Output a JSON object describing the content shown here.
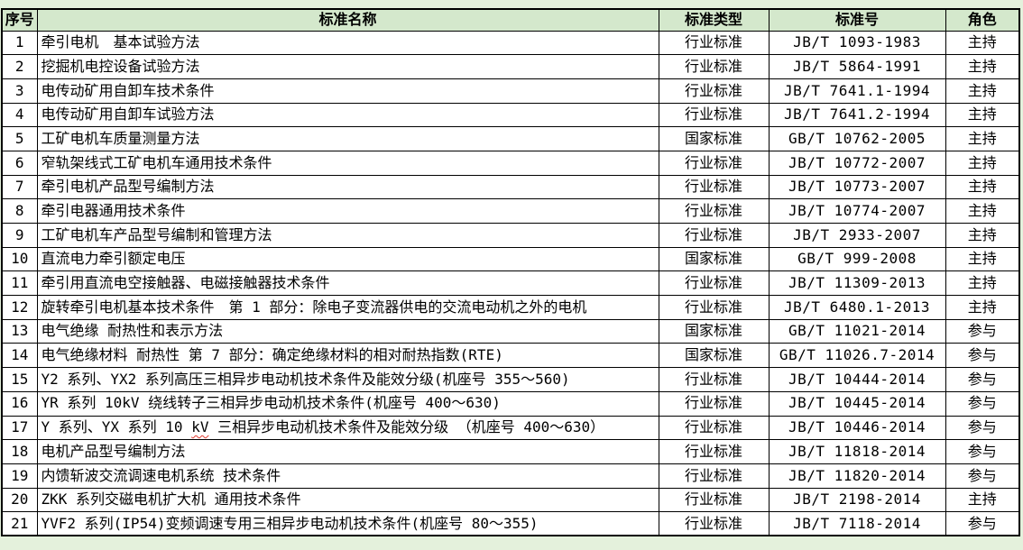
{
  "colors": {
    "page_bg": "#e4f1dc",
    "header_bg": "#d4e8cc",
    "grid_border": "#000000",
    "cell_bg": "#ffffff",
    "spellcheck_color": "#e03c31"
  },
  "table": {
    "columns": [
      {
        "key": "seq",
        "label": "序号"
      },
      {
        "key": "name",
        "label": "标准名称"
      },
      {
        "key": "type",
        "label": "标准类型"
      },
      {
        "key": "number",
        "label": "标准号"
      },
      {
        "key": "role",
        "label": "角色"
      }
    ],
    "rows": [
      {
        "seq": "1",
        "name": "牵引电机　基本试验方法",
        "type": "行业标准",
        "number": "JB/T 1093-1983",
        "role": "主持"
      },
      {
        "seq": "2",
        "name": "挖掘机电控设备试验方法",
        "type": "行业标准",
        "number": "JB/T 5864-1991",
        "role": "主持"
      },
      {
        "seq": "3",
        "name": "电传动矿用自卸车技术条件",
        "type": "行业标准",
        "number": "JB/T 7641.1-1994",
        "role": "主持"
      },
      {
        "seq": "4",
        "name": "电传动矿用自卸车试验方法",
        "type": "行业标准",
        "number": "JB/T 7641.2-1994",
        "role": "主持"
      },
      {
        "seq": "5",
        "name": "工矿电机车质量测量方法",
        "type": "国家标准",
        "number": "GB/T 10762-2005",
        "role": "主持"
      },
      {
        "seq": "6",
        "name": "窄轨架线式工矿电机车通用技术条件",
        "type": "行业标准",
        "number": "JB/T 10772-2007",
        "role": "主持"
      },
      {
        "seq": "7",
        "name": "牵引电机产品型号编制方法",
        "type": "行业标准",
        "number": "JB/T 10773-2007",
        "role": "主持"
      },
      {
        "seq": "8",
        "name": "牵引电器通用技术条件",
        "type": "行业标准",
        "number": "JB/T 10774-2007",
        "role": "主持"
      },
      {
        "seq": "9",
        "name": "工矿电机车产品型号编制和管理方法",
        "type": "行业标准",
        "number": "JB/T 2933-2007",
        "role": "主持"
      },
      {
        "seq": "10",
        "name": "直流电力牵引额定电压",
        "type": "国家标准",
        "number": "GB/T 999-2008",
        "role": "主持"
      },
      {
        "seq": "11",
        "name": "牵引用直流电空接触器、电磁接触器技术条件",
        "type": "行业标准",
        "number": "JB/T 11309-2013",
        "role": "主持"
      },
      {
        "seq": "12",
        "name": "旋转牵引电机基本技术条件　第 1 部分：除电子变流器供电的交流电动机之外的电机",
        "type": "行业标准",
        "number": "JB/T 6480.1-2013",
        "role": "主持"
      },
      {
        "seq": "13",
        "name": "电气绝缘 耐热性和表示方法",
        "type": "国家标准",
        "number": "GB/T 11021-2014",
        "role": "参与"
      },
      {
        "seq": "14",
        "name": "电气绝缘材料 耐热性 第 7 部分：确定绝缘材料的相对耐热指数(RTE)",
        "type": "国家标准",
        "number": "GB/T 11026.7-2014",
        "role": "参与"
      },
      {
        "seq": "15",
        "name": "Y2 系列、YX2 系列高压三相异步电动机技术条件及能效分级(机座号 355～560)",
        "type": "行业标准",
        "number": "JB/T 10444-2014",
        "role": "参与"
      },
      {
        "seq": "16",
        "name": "YR 系列 10kV 绕线转子三相异步电动机技术条件(机座号 400～630)",
        "type": "行业标准",
        "number": "JB/T 10445-2014",
        "role": "参与"
      },
      {
        "seq": "17",
        "name": "Y 系列、YX 系列 10 kV 三相异步电动机技术条件及能效分级 （机座号 400～630）",
        "type": "行业标准",
        "number": "JB/T 10446-2014",
        "role": "参与",
        "spellcheck_underline": "kV"
      },
      {
        "seq": "18",
        "name": "电机产品型号编制方法",
        "type": "行业标准",
        "number": "JB/T 11818-2014",
        "role": "参与"
      },
      {
        "seq": "19",
        "name": "内馈斩波交流调速电机系统 技术条件",
        "type": "行业标准",
        "number": "JB/T 11820-2014",
        "role": "参与"
      },
      {
        "seq": "20",
        "name": "ZKK 系列交磁电机扩大机 通用技术条件",
        "type": "行业标准",
        "number": "JB/T 2198-2014",
        "role": "主持"
      },
      {
        "seq": "21",
        "name": "YVF2 系列(IP54)变频调速专用三相异步电动机技术条件(机座号 80～355)",
        "type": "行业标准",
        "number": "JB/T 7118-2014",
        "role": "参与"
      }
    ]
  }
}
